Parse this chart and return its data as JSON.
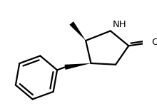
{
  "bg_color": "#ffffff",
  "line_color": "#000000",
  "line_width": 1.6,
  "figsize": [
    2.2,
    1.56
  ],
  "dpi": 100,
  "nh_label": "NH",
  "o_carbonyl_label": "O",
  "font_size": 9.5,
  "font_size_small": 8.5
}
